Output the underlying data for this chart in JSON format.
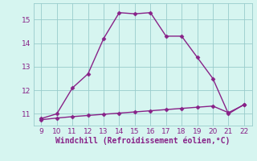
{
  "x_upper": [
    9,
    10,
    11,
    12,
    13,
    14,
    15,
    16,
    17,
    18,
    19,
    20,
    21,
    22
  ],
  "y_upper": [
    10.8,
    11.0,
    12.1,
    12.7,
    14.2,
    15.3,
    15.25,
    15.3,
    14.3,
    14.3,
    13.4,
    12.5,
    11.0,
    11.4
  ],
  "x_lower": [
    9,
    10,
    11,
    12,
    13,
    14,
    15,
    16,
    17,
    18,
    19,
    20,
    21,
    22
  ],
  "y_lower": [
    10.75,
    10.82,
    10.88,
    10.93,
    10.98,
    11.03,
    11.08,
    11.13,
    11.18,
    11.23,
    11.28,
    11.33,
    11.05,
    11.38
  ],
  "line_color": "#882288",
  "bg_color": "#D6F5F0",
  "grid_color": "#99CCCC",
  "xlabel": "Windchill (Refroidissement éolien,°C)",
  "xlim": [
    8.5,
    22.5
  ],
  "ylim": [
    10.5,
    15.7
  ],
  "xticks": [
    9,
    10,
    11,
    12,
    13,
    14,
    15,
    16,
    17,
    18,
    19,
    20,
    21,
    22
  ],
  "yticks": [
    11,
    12,
    13,
    14,
    15
  ],
  "xlabel_color": "#882288",
  "tick_color": "#882288",
  "marker": "D",
  "markersize": 2.5,
  "linewidth": 1.0
}
